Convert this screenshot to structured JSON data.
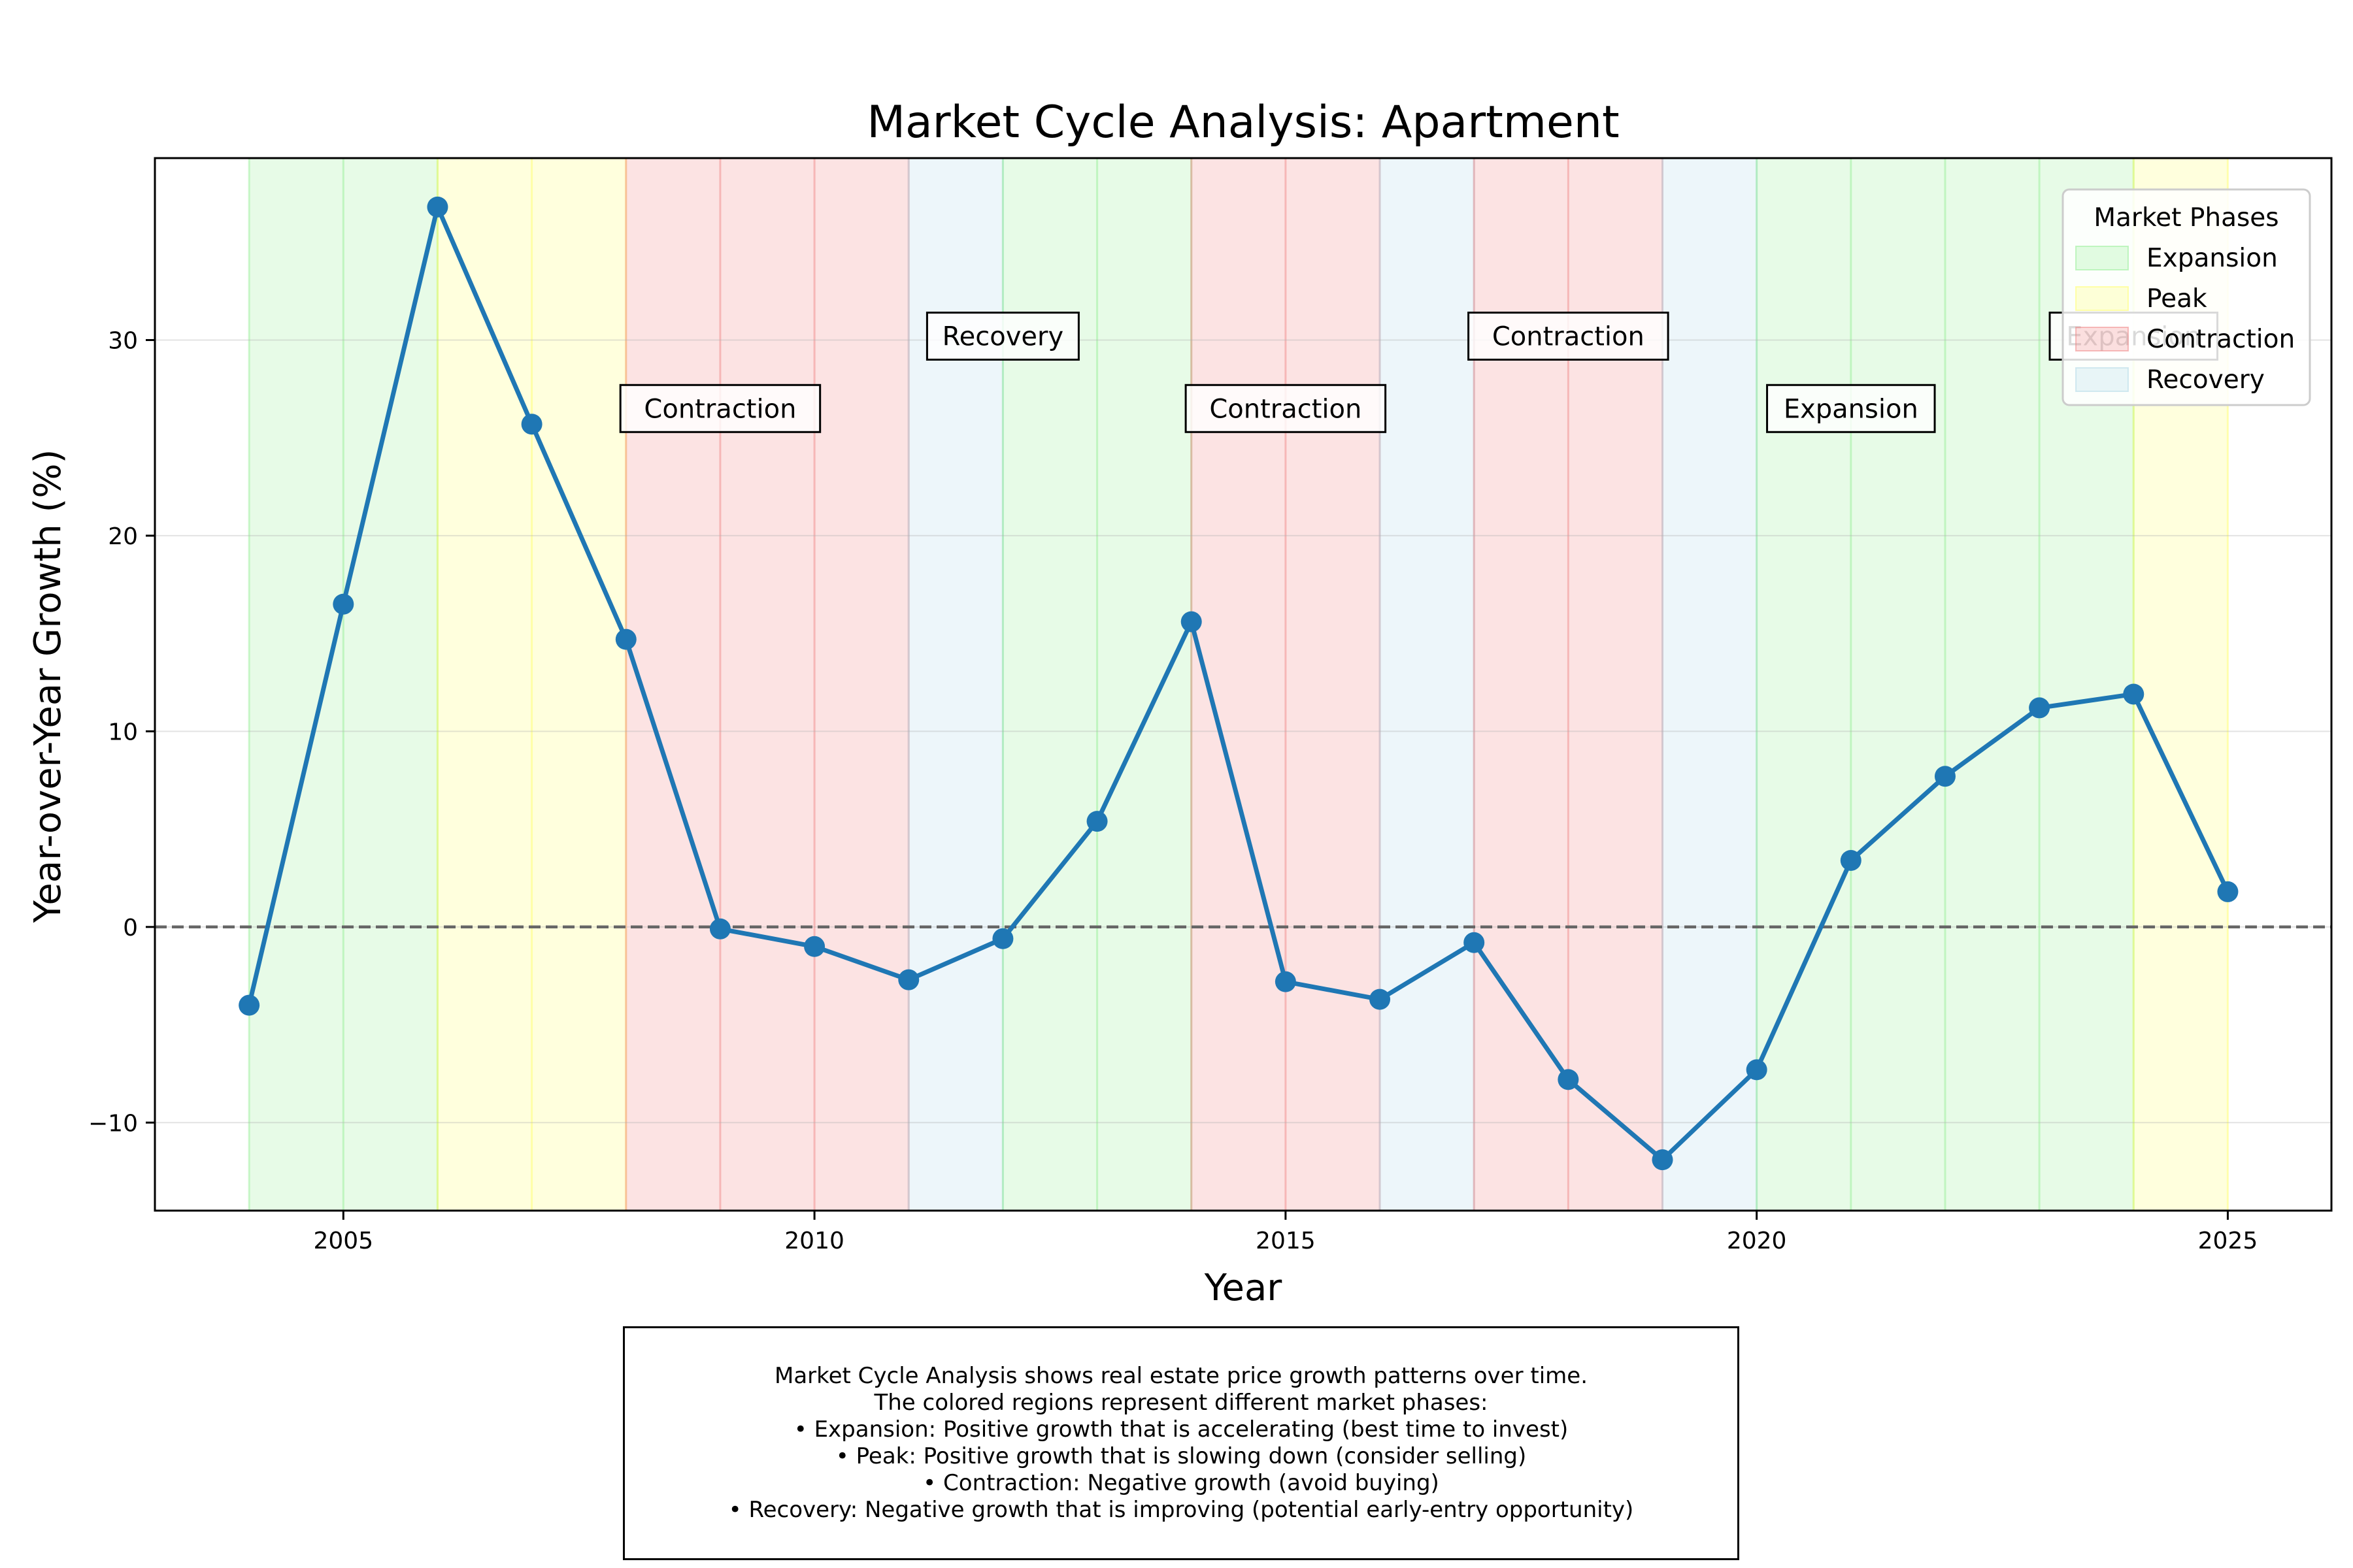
{
  "chart_data": {
    "type": "line",
    "title": "Market Cycle Analysis: Apartment",
    "xlabel": "Year",
    "ylabel": "Year-over-Year Growth (%)",
    "xlim": [
      2003,
      2026.1
    ],
    "ylim": [
      -14.5,
      39.3
    ],
    "xticks": [
      2005,
      2010,
      2015,
      2020,
      2025
    ],
    "yticks": [
      -10,
      0,
      10,
      20,
      30
    ],
    "grid": true,
    "zero_line": true,
    "x": [
      2004,
      2005,
      2006,
      2007,
      2008,
      2009,
      2010,
      2011,
      2012,
      2013,
      2014,
      2015,
      2016,
      2017,
      2018,
      2019,
      2020,
      2021,
      2022,
      2023,
      2024,
      2025
    ],
    "series": [
      {
        "values": [
          -4.0,
          16.5,
          36.8,
          25.7,
          14.7,
          -0.1,
          -1.0,
          -2.7,
          -0.6,
          5.4,
          15.6,
          -2.8,
          -3.7,
          -0.8,
          -7.8,
          -11.9,
          -7.3,
          3.4,
          7.7,
          11.2,
          11.9,
          1.8
        ],
        "color": "#1f77b4"
      }
    ],
    "phases": [
      {
        "phase": "Expansion",
        "start": 2004,
        "end": 2006
      },
      {
        "phase": "Peak",
        "start": 2006,
        "end": 2008
      },
      {
        "phase": "Contraction",
        "start": 2008,
        "end": 2011
      },
      {
        "phase": "Recovery",
        "start": 2011,
        "end": 2012
      },
      {
        "phase": "Expansion",
        "start": 2012,
        "end": 2014
      },
      {
        "phase": "Contraction",
        "start": 2014,
        "end": 2016
      },
      {
        "phase": "Recovery",
        "start": 2016,
        "end": 2017
      },
      {
        "phase": "Contraction",
        "start": 2017,
        "end": 2019
      },
      {
        "phase": "Recovery",
        "start": 2019,
        "end": 2020
      },
      {
        "phase": "Expansion",
        "start": 2020,
        "end": 2024
      },
      {
        "phase": "Peak",
        "start": 2024,
        "end": 2025
      }
    ],
    "phase_colors": {
      "Expansion": "#90ee90",
      "Peak": "#ffff66",
      "Contraction": "#f08080",
      "Recovery": "#add8e6"
    },
    "annotations": [
      {
        "text": "Contraction",
        "x": 2009,
        "y": 26.5
      },
      {
        "text": "Recovery",
        "x": 2012,
        "y": 30.2
      },
      {
        "text": "Contraction",
        "x": 2015,
        "y": 26.5
      },
      {
        "text": "Contraction",
        "x": 2018,
        "y": 30.2
      },
      {
        "text": "Expansion",
        "x": 2021,
        "y": 26.5
      },
      {
        "text": "Expansion",
        "x": 2024,
        "y": 30.2
      }
    ],
    "legend": {
      "title": "Market Phases",
      "placement": "upper-right",
      "entries": [
        "Expansion",
        "Peak",
        "Contraction",
        "Recovery"
      ]
    }
  },
  "caption": [
    "Market Cycle Analysis shows real estate price growth patterns over time.",
    "The colored regions represent different market phases:",
    "• Expansion: Positive growth that is accelerating (best time to invest)",
    "• Peak: Positive growth that is slowing down (consider selling)",
    "• Contraction: Negative growth (avoid buying)",
    "• Recovery: Negative growth that is improving (potential early-entry opportunity)"
  ]
}
